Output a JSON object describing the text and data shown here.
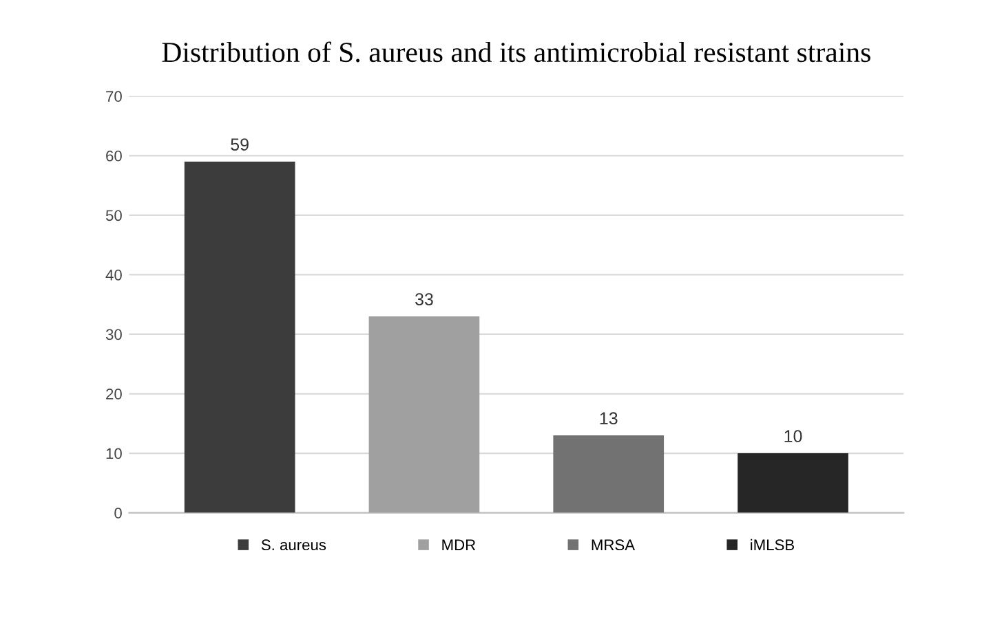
{
  "chart_data": {
    "type": "bar",
    "title": "Distribution of S. aureus and its antimicrobial resistant strains",
    "categories": [
      null,
      null,
      null,
      null
    ],
    "series": [
      {
        "name": "S. aureus",
        "color": "#3c3c3c",
        "values": [
          59,
          null,
          null,
          null
        ]
      },
      {
        "name": "MDR",
        "color": "#a0a0a0",
        "values": [
          null,
          33,
          null,
          null
        ]
      },
      {
        "name": "MRSA",
        "color": "#727272",
        "values": [
          null,
          null,
          13,
          null
        ]
      },
      {
        "name": "iMLSB",
        "color": "#262626",
        "values": [
          null,
          null,
          null,
          10
        ]
      }
    ],
    "ylim": [
      0,
      70
    ],
    "yticks": [
      0,
      10,
      20,
      30,
      40,
      50,
      60,
      70
    ],
    "grid": "y",
    "legend": "bottom",
    "data_labels": true
  }
}
